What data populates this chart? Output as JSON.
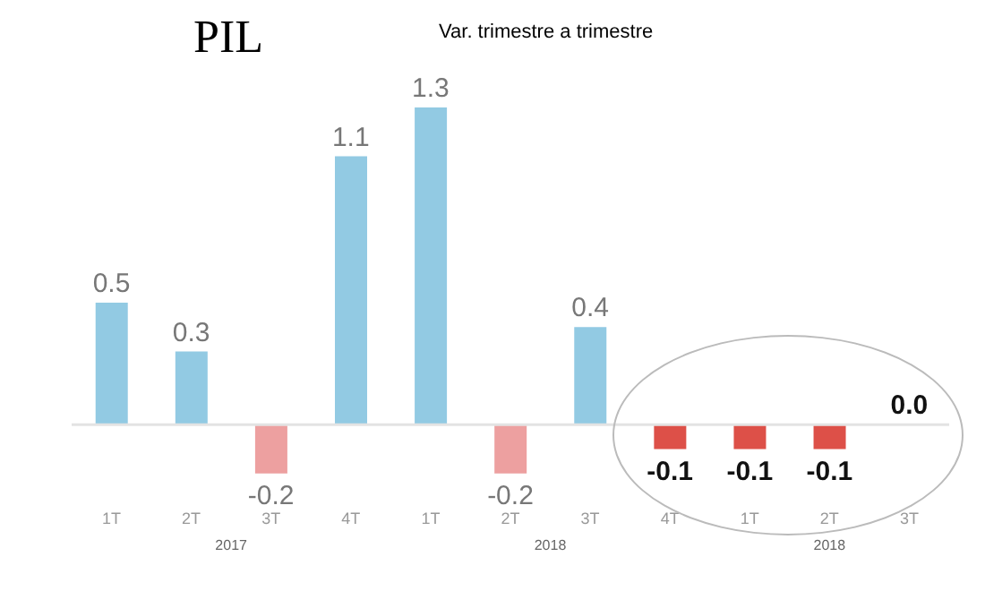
{
  "chart_data": {
    "type": "bar",
    "title": "PIL",
    "subtitle": "Var. trimestre a trimestre",
    "categories": [
      "1T",
      "2T",
      "3T",
      "4T",
      "1T",
      "2T",
      "3T",
      "4T",
      "1T",
      "2T",
      "3T"
    ],
    "values": [
      0.5,
      0.3,
      -0.2,
      1.1,
      1.3,
      -0.2,
      0.4,
      -0.1,
      -0.1,
      -0.1,
      0.0
    ],
    "colors": [
      "#92cae3",
      "#92cae3",
      "#eda0a0",
      "#92cae3",
      "#92cae3",
      "#eda0a0",
      "#92cae3",
      "#dd5048",
      "#dd5048",
      "#dd5048",
      "#dd5048"
    ],
    "value_labels": [
      "0.5",
      "0.3",
      "-0.2",
      "1.1",
      "1.3",
      "-0.2",
      "0.4",
      "-0.1",
      "-0.1",
      "-0.1",
      "0.0"
    ],
    "annotations": [
      "2017",
      "2018",
      "2018"
    ],
    "ref_lines": [
      {
        "axis": "y",
        "value": 0,
        "color": "#e3e3e3"
      }
    ]
  }
}
